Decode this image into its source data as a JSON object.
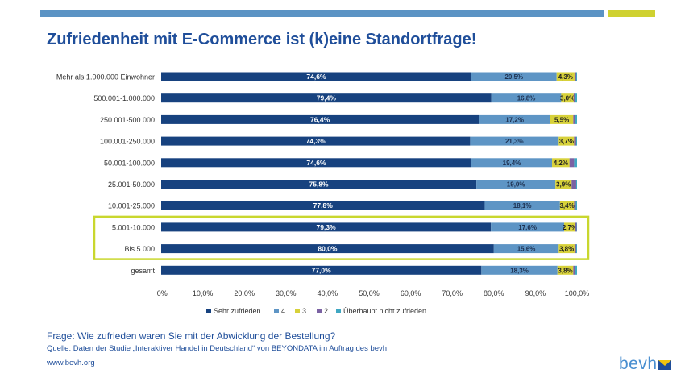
{
  "title": "Zufriedenheit mit E-Commerce ist (k)eine Standortfrage!",
  "footer": {
    "question": "Frage: Wie zufrieden waren Sie mit der Abwicklung der Bestellung?",
    "source": "Quelle: Daten der Studie „Interaktiver Handel in Deutschland“ von BEYONDATA im Auftrag des bevh",
    "url": "www.bevh.org"
  },
  "logo": {
    "text": "bevh",
    "icon": "bevh-envelope-icon"
  },
  "colors": {
    "brand_blue": "#1f4e9a",
    "accent_yellow": "#cfd130",
    "top_bar_blue": "#5b93c4",
    "highlight_box": "#c9d72e"
  },
  "chart_data": {
    "type": "bar",
    "orientation": "horizontal",
    "stacked": true,
    "categories": [
      "Mehr als 1.000.000 Einwohner",
      "500.001-1.000.000",
      "250.001-500.000",
      "100.001-250.000",
      "50.001-100.000",
      "25.001-50.000",
      "10.001-25.000",
      "5.001-10.000",
      "Bis 5.000",
      "gesamt"
    ],
    "series": [
      {
        "name": "Sehr zufrieden",
        "color": "#17427f",
        "values": [
          74.6,
          79.4,
          76.4,
          74.3,
          74.6,
          75.8,
          77.8,
          79.3,
          80.0,
          77.0
        ],
        "labels": [
          "74,6%",
          "79,4%",
          "76,4%",
          "74,3%",
          "74,6%",
          "75,8%",
          "77,8%",
          "79,3%",
          "80,0%",
          "77,0%"
        ]
      },
      {
        "name": "4",
        "color": "#5e95c5",
        "values": [
          20.5,
          16.8,
          17.2,
          21.3,
          19.4,
          19.0,
          18.1,
          17.6,
          15.6,
          18.3
        ],
        "labels": [
          "20,5%",
          "16,8%",
          "17,2%",
          "21,3%",
          "19,4%",
          "19,0%",
          "18,1%",
          "17,6%",
          "15,6%",
          "18,3%"
        ]
      },
      {
        "name": "3",
        "color": "#d7d13a",
        "values": [
          4.3,
          3.0,
          5.5,
          3.7,
          4.2,
          3.9,
          3.4,
          2.7,
          3.8,
          3.8
        ],
        "labels": [
          "4,3%",
          "3,0%",
          "5,5%",
          "3,7%",
          "4,2%",
          "3,9%",
          "3,4%",
          "2,7%",
          "3,8%",
          "3,8%"
        ]
      },
      {
        "name": "2",
        "color": "#7b62a3",
        "values": [
          0.4,
          0.4,
          0.4,
          0.5,
          1.1,
          1.1,
          0.4,
          0.3,
          0.4,
          0.5
        ]
      },
      {
        "name": "Überhaupt nicht zufrieden",
        "color": "#3fa7c2",
        "values": [
          0.2,
          0.4,
          0.5,
          0.2,
          0.7,
          0.2,
          0.3,
          0.1,
          0.2,
          0.4
        ]
      }
    ],
    "xlim": [
      0,
      100
    ],
    "x_ticks": [
      ",0%",
      "10,0%",
      "20,0%",
      "30,0%",
      "40,0%",
      "50,0%",
      "60,0%",
      "70,0%",
      "80,0%",
      "90,0%",
      "100,0%"
    ],
    "grid": false,
    "legend_position": "bottom",
    "highlight": [
      "5.001-10.000",
      "Bis 5.000"
    ]
  }
}
